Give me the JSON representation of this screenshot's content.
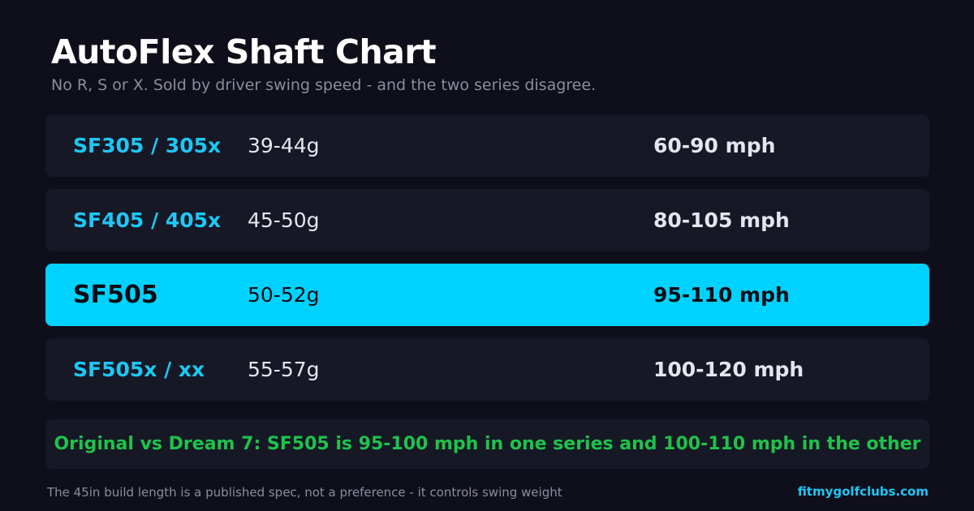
{
  "header": {
    "title": "AutoFlex Shaft Chart",
    "subtitle": "No R, S or X. Sold by driver swing speed - and the two series disagree."
  },
  "rows": [
    {
      "name": "SF305 / 305x",
      "weight": "39-44g",
      "speed": "60-90 mph",
      "highlighted": false
    },
    {
      "name": "SF405 / 405x",
      "weight": "45-50g",
      "speed": "80-105 mph",
      "highlighted": false
    },
    {
      "name": "SF505",
      "weight": "50-52g",
      "speed": "95-110 mph",
      "highlighted": true
    },
    {
      "name": "SF505x / xx",
      "weight": "55-57g",
      "speed": "100-120 mph",
      "highlighted": false
    }
  ],
  "note": "Original vs Dream 7: SF505 is 95-100 mph in one series and 100-110 mph in the other",
  "footer": {
    "disclaimer": "The 45in build length is a published spec, not a preference - it controls swing weight",
    "site": "fitmygolfclubs.com"
  },
  "colors": {
    "background": "#0e0f1a",
    "row": "#161826",
    "accent": "#00d2ff",
    "note_green": "#1fc24a"
  }
}
